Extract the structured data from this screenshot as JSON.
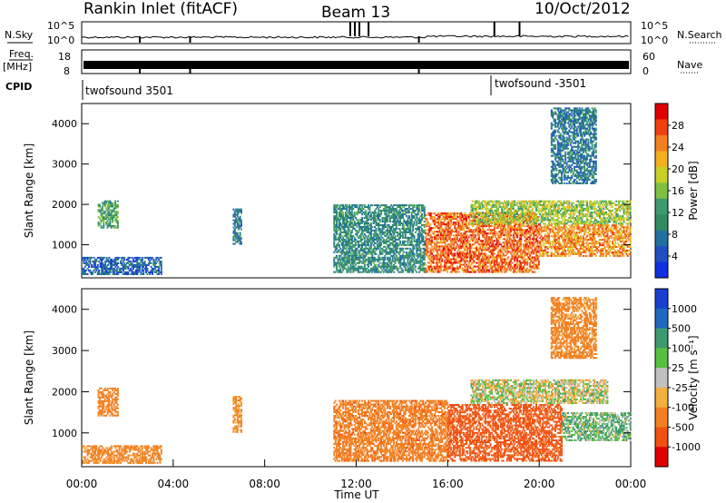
{
  "header": {
    "station": "Rankin Inlet (fitACF)",
    "beam": "Beam 13",
    "date": "10/Oct/2012"
  },
  "sky_panel": {
    "left_label": "N.Sky",
    "left_ticks": [
      "10^5",
      "10^0"
    ],
    "right_label": "N.Search",
    "right_ticks": [
      "10^5",
      "10^0"
    ]
  },
  "freq_panel": {
    "left_label_1": "Freq.",
    "left_label_2": "[MHz]",
    "left_ticks": [
      "18",
      "8"
    ],
    "right_label": "Nave",
    "right_ticks": [
      "60",
      "0"
    ]
  },
  "cpid_panel": {
    "label": "CPID",
    "entries": [
      "twofsound 3501",
      "twofsound -3501"
    ]
  },
  "chart_data": [
    {
      "type": "heatmap",
      "name": "power",
      "ylabel": "Slant Range [km]",
      "yticks": [
        1000,
        2000,
        3000,
        4000
      ],
      "ylim": [
        180,
        4500
      ],
      "xlim": [
        0,
        24
      ],
      "colorbar": {
        "label": "Power [dB]",
        "ticks": [
          "28",
          "24",
          "20",
          "16",
          "12",
          "8",
          "4"
        ],
        "colors": [
          "#e00000",
          "#f04010",
          "#f28020",
          "#f2b020",
          "#c8d028",
          "#80c040",
          "#3d9a70",
          "#308c60",
          "#2070a0",
          "#2050c0",
          "#1030e0"
        ]
      },
      "rows": [
        {
          "range_km": [
            1400,
            2100
          ],
          "hours": [
            0.7,
            1.6
          ],
          "level": 14
        },
        {
          "range_km": [
            250,
            700
          ],
          "hours": [
            0.0,
            3.5
          ],
          "level": 8
        },
        {
          "range_km": [
            1000,
            1900
          ],
          "hours": [
            6.6,
            7.0
          ],
          "level": 10
        },
        {
          "range_km": [
            300,
            2000
          ],
          "hours": [
            11.0,
            15.0
          ],
          "level": 12
        },
        {
          "range_km": [
            300,
            1800
          ],
          "hours": [
            15.0,
            20.0
          ],
          "level": 26
        },
        {
          "range_km": [
            1500,
            2100
          ],
          "hours": [
            17.0,
            24.0
          ],
          "level": 18
        },
        {
          "range_km": [
            700,
            1500
          ],
          "hours": [
            20.0,
            24.0
          ],
          "level": 24
        },
        {
          "range_km": [
            2500,
            4400
          ],
          "hours": [
            20.5,
            22.5
          ],
          "level": 10
        }
      ]
    },
    {
      "type": "heatmap",
      "name": "velocity",
      "ylabel": "Slant Range [km]",
      "yticks": [
        1000,
        2000,
        3000,
        4000
      ],
      "ylim": [
        180,
        4500
      ],
      "xlim": [
        0,
        24
      ],
      "xticks": [
        "00:00",
        "04:00",
        "08:00",
        "12:00",
        "16:00",
        "20:00",
        "00:00"
      ],
      "xlabel": "Time UT",
      "colorbar": {
        "label": "Velocity [m s⁻¹]",
        "ticks": [
          "1000",
          "500",
          "100",
          "25",
          "-25",
          "-100",
          "-500",
          "-1000"
        ],
        "colors": [
          "#1a40d0",
          "#2068c0",
          "#3d9a70",
          "#58c040",
          "#c0c0c0",
          "#f2b040",
          "#f28020",
          "#f05010",
          "#e00000"
        ]
      },
      "rows": [
        {
          "range_km": [
            1400,
            2100
          ],
          "hours": [
            0.7,
            1.6
          ],
          "level": -300
        },
        {
          "range_km": [
            250,
            700
          ],
          "hours": [
            0.0,
            3.5
          ],
          "level": -200
        },
        {
          "range_km": [
            1000,
            1900
          ],
          "hours": [
            6.6,
            7.0
          ],
          "level": -150
        },
        {
          "range_km": [
            300,
            1800
          ],
          "hours": [
            11.0,
            16.0
          ],
          "level": -400
        },
        {
          "range_km": [
            300,
            1700
          ],
          "hours": [
            16.0,
            21.0
          ],
          "level": -600
        },
        {
          "range_km": [
            1700,
            2300
          ],
          "hours": [
            17.0,
            23.0
          ],
          "level": 0
        },
        {
          "range_km": [
            800,
            1500
          ],
          "hours": [
            21.0,
            24.0
          ],
          "level": 80
        },
        {
          "range_km": [
            2800,
            4300
          ],
          "hours": [
            20.5,
            22.5
          ],
          "level": -200
        }
      ]
    }
  ]
}
